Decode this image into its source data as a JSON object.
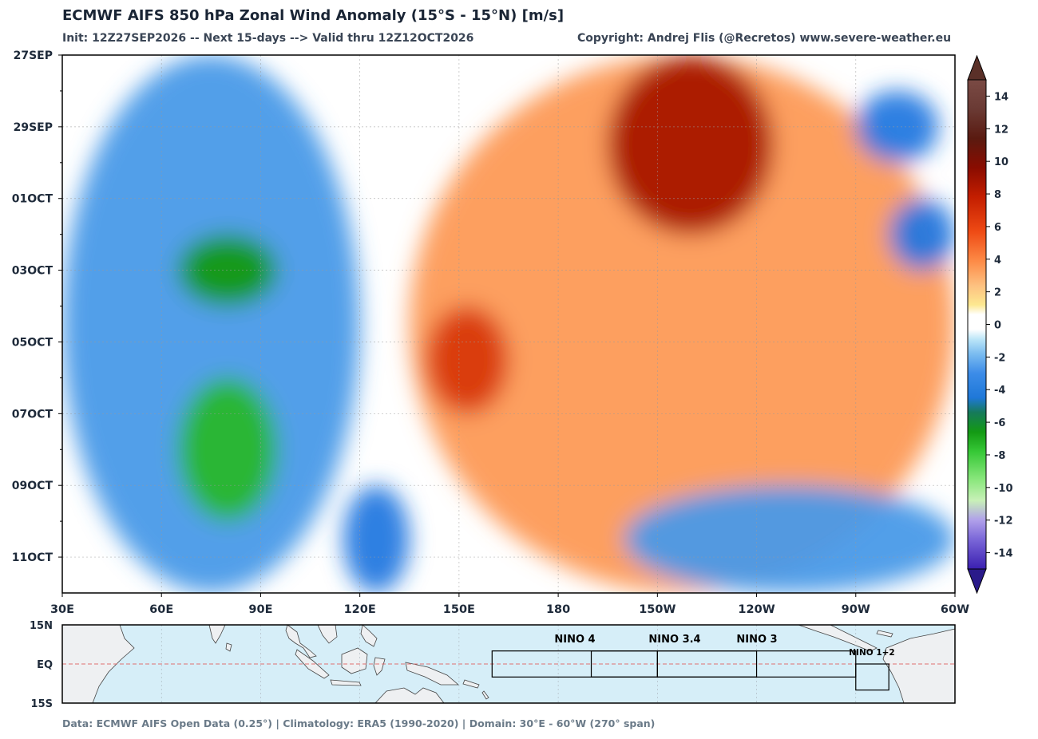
{
  "header": {
    "title": "ECMWF AIFS 850 hPa Zonal Wind Anomaly (15°S - 15°N) [m/s]",
    "subtitle": "Init: 12Z27SEP2026 -- Next 15-days --> Valid thru 12Z12OCT2026",
    "copyright": "Copyright: Andrej Flis (@Recretos) www.severe-weather.eu"
  },
  "footer": "Data: ECMWF AIFS Open Data (0.25°)   |   Climatology: ERA5 (1990-2020)   |   Domain: 30°E - 60°W (270° span)",
  "colors": {
    "strong_easterly": "#1a1a8a",
    "easterly_green": "#1a9a1a",
    "easterly_blue": "#2278e0",
    "near_zero": "#ffffff",
    "westerly_orange": "#fd7a3c",
    "westerly_red": "#c41e00",
    "strong_westerly": "#5a3028"
  },
  "chart_data": {
    "type": "heatmap",
    "variable": "850 hPa zonal wind anomaly",
    "units": "m/s",
    "x_ticks": [
      "30E",
      "60E",
      "90E",
      "120E",
      "150E",
      "180",
      "150W",
      "120W",
      "90W",
      "60W"
    ],
    "x_degrees_east": [
      30,
      60,
      90,
      120,
      150,
      180,
      210,
      240,
      270,
      300
    ],
    "xlim": [
      30,
      300
    ],
    "y_ticks": [
      "27SEP",
      "29SEP",
      "01OCT",
      "03OCT",
      "05OCT",
      "07OCT",
      "09OCT",
      "11OCT"
    ],
    "y_dates": [
      "2026-09-27",
      "2026-09-29",
      "2026-10-01",
      "2026-10-03",
      "2026-10-05",
      "2026-10-07",
      "2026-10-09",
      "2026-10-11"
    ],
    "ylim": [
      "2026-09-27",
      "2026-10-12"
    ],
    "y_inverted": true,
    "grid": true,
    "colorbar": {
      "orientation": "vertical",
      "placement": "right",
      "ticks": [
        14,
        12,
        10,
        8,
        6,
        4,
        2,
        0,
        -2,
        -4,
        -6,
        -8,
        -10,
        -12,
        -14
      ],
      "range": [
        -15,
        15
      ],
      "extend": "both"
    },
    "features": [
      {
        "lon_start": 30,
        "lon_end": 120,
        "date_start": "2026-09-27",
        "date_end": "2026-10-12",
        "anomaly": -3
      },
      {
        "lon_start": 65,
        "lon_end": 95,
        "date_start": "2026-10-02",
        "date_end": "2026-10-04",
        "anomaly": -6
      },
      {
        "lon_start": 65,
        "lon_end": 95,
        "date_start": "2026-10-06",
        "date_end": "2026-10-10",
        "anomaly": -8
      },
      {
        "lon_start": 115,
        "lon_end": 135,
        "date_start": "2026-10-09",
        "date_end": "2026-10-12",
        "anomaly": -4
      },
      {
        "lon_start": 135,
        "lon_end": 300,
        "date_start": "2026-09-27",
        "date_end": "2026-10-12",
        "anomaly": 3
      },
      {
        "lon_start": 140,
        "lon_end": 165,
        "date_start": "2026-10-04",
        "date_end": "2026-10-07",
        "anomaly": 7
      },
      {
        "lon_start": 195,
        "lon_end": 245,
        "date_start": "2026-09-27",
        "date_end": "2026-10-02",
        "anomaly": 9
      },
      {
        "lon_start": 270,
        "lon_end": 295,
        "date_start": "2026-09-28",
        "date_end": "2026-09-30",
        "anomaly": -4
      },
      {
        "lon_start": 280,
        "lon_end": 300,
        "date_start": "2026-10-01",
        "date_end": "2026-10-03",
        "anomaly": -4
      },
      {
        "lon_start": 200,
        "lon_end": 300,
        "date_start": "2026-10-09",
        "date_end": "2026-10-12",
        "anomaly": -2
      }
    ]
  },
  "map": {
    "lat_ticks": [
      "15N",
      "EQ",
      "15S"
    ],
    "regions": [
      {
        "name": "NINO 4",
        "lon_w": 160,
        "lon_e": 210,
        "lat_s": -5,
        "lat_n": 5
      },
      {
        "name": "NINO 3.4",
        "lon_w": 190,
        "lon_e": 240,
        "lat_s": -5,
        "lat_n": 5
      },
      {
        "name": "NINO 3",
        "lon_w": 210,
        "lon_e": 270,
        "lat_s": -5,
        "lat_n": 5
      },
      {
        "name": "NINO 1+2",
        "lon_w": 270,
        "lon_e": 280,
        "lat_s": -10,
        "lat_n": 0
      }
    ]
  }
}
